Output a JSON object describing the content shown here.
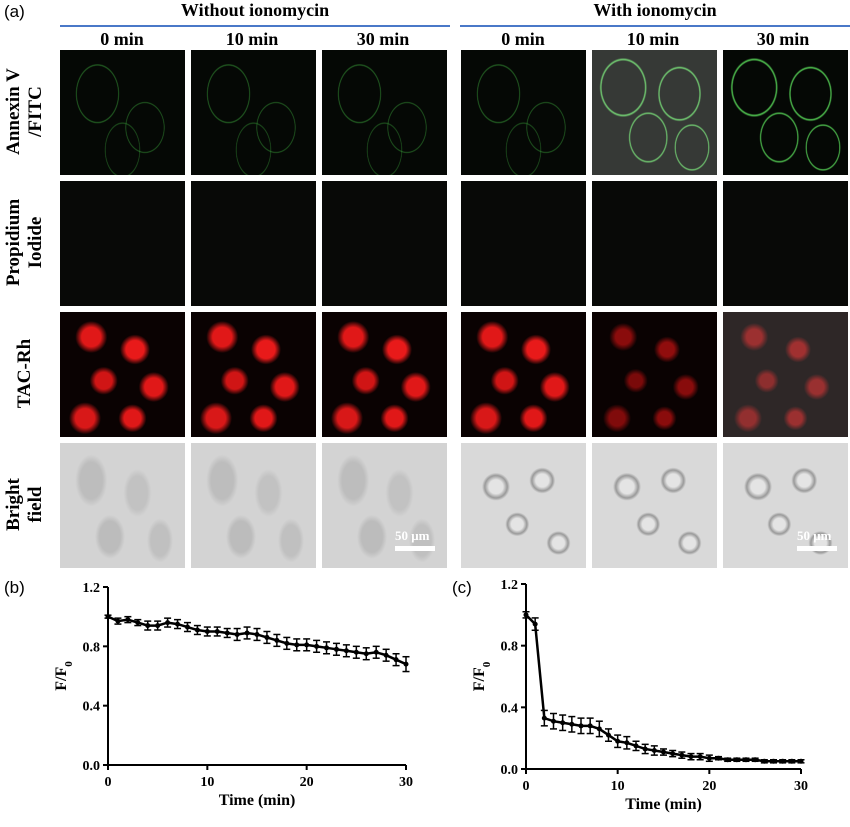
{
  "panel_a": {
    "letter": "(a)",
    "groups": [
      {
        "title": "Without  ionomycin",
        "columns": [
          "0 min",
          "10 min",
          "30 min"
        ]
      },
      {
        "title": "With ionomycin",
        "columns": [
          "0 min",
          "10 min",
          "30 min"
        ]
      }
    ],
    "rows": [
      {
        "label_line1": "Annexin V",
        "label_line2": "/FITC"
      },
      {
        "label_line1": "Propidium",
        "label_line2": "Iodide"
      },
      {
        "label_line1": "TAC-Rh",
        "label_line2": ""
      },
      {
        "label_line1": "Bright",
        "label_line2": "field"
      }
    ],
    "scale_bar_label": "50 μm",
    "colors": {
      "group_line": "#4a78c8",
      "fitc": "#5adc5a",
      "rhodamine": "#e01818"
    }
  },
  "chart_data": [
    {
      "panel": "(b)",
      "type": "line",
      "xlabel": "Time (min)",
      "ylabel": "F/F",
      "ylabel_subscript": "0",
      "xlim": [
        0,
        30
      ],
      "ylim": [
        0.0,
        1.2
      ],
      "xticks": [
        "0",
        "10",
        "20",
        "30"
      ],
      "yticks": [
        "0.0",
        "0.4",
        "0.8",
        "1.2"
      ],
      "x": [
        0,
        1,
        2,
        3,
        4,
        5,
        6,
        7,
        8,
        9,
        10,
        11,
        12,
        13,
        14,
        15,
        16,
        17,
        18,
        19,
        20,
        21,
        22,
        23,
        24,
        25,
        26,
        27,
        28,
        29,
        30
      ],
      "y": [
        1.0,
        0.97,
        0.98,
        0.96,
        0.94,
        0.94,
        0.96,
        0.95,
        0.93,
        0.91,
        0.9,
        0.9,
        0.89,
        0.88,
        0.89,
        0.88,
        0.86,
        0.84,
        0.82,
        0.81,
        0.81,
        0.8,
        0.79,
        0.78,
        0.77,
        0.76,
        0.75,
        0.76,
        0.74,
        0.71,
        0.68
      ],
      "err": [
        0.01,
        0.02,
        0.02,
        0.02,
        0.03,
        0.03,
        0.03,
        0.03,
        0.03,
        0.03,
        0.03,
        0.03,
        0.03,
        0.04,
        0.04,
        0.04,
        0.04,
        0.04,
        0.04,
        0.04,
        0.04,
        0.04,
        0.04,
        0.04,
        0.04,
        0.04,
        0.04,
        0.04,
        0.04,
        0.04,
        0.05
      ]
    },
    {
      "panel": "(c)",
      "type": "line",
      "xlabel": "Time (min)",
      "ylabel": "F/F",
      "ylabel_subscript": "0",
      "xlim": [
        0,
        30
      ],
      "ylim": [
        0.0,
        1.2
      ],
      "xticks": [
        "0",
        "10",
        "20",
        "30"
      ],
      "yticks": [
        "0.0",
        "0.4",
        "0.8",
        "1.2"
      ],
      "x": [
        0,
        1,
        2,
        3,
        4,
        5,
        6,
        7,
        8,
        9,
        10,
        11,
        12,
        13,
        14,
        15,
        16,
        17,
        18,
        19,
        20,
        21,
        22,
        23,
        24,
        25,
        26,
        27,
        28,
        29,
        30
      ],
      "y": [
        1.0,
        0.94,
        0.33,
        0.31,
        0.3,
        0.29,
        0.28,
        0.28,
        0.26,
        0.22,
        0.18,
        0.17,
        0.15,
        0.13,
        0.12,
        0.11,
        0.1,
        0.09,
        0.08,
        0.08,
        0.07,
        0.07,
        0.06,
        0.06,
        0.06,
        0.06,
        0.05,
        0.05,
        0.05,
        0.05,
        0.05
      ],
      "err": [
        0.02,
        0.04,
        0.05,
        0.05,
        0.05,
        0.05,
        0.05,
        0.05,
        0.05,
        0.04,
        0.04,
        0.04,
        0.03,
        0.03,
        0.03,
        0.02,
        0.02,
        0.02,
        0.02,
        0.02,
        0.02,
        0.01,
        0.01,
        0.01,
        0.01,
        0.01,
        0.01,
        0.01,
        0.01,
        0.01,
        0.01
      ]
    }
  ]
}
